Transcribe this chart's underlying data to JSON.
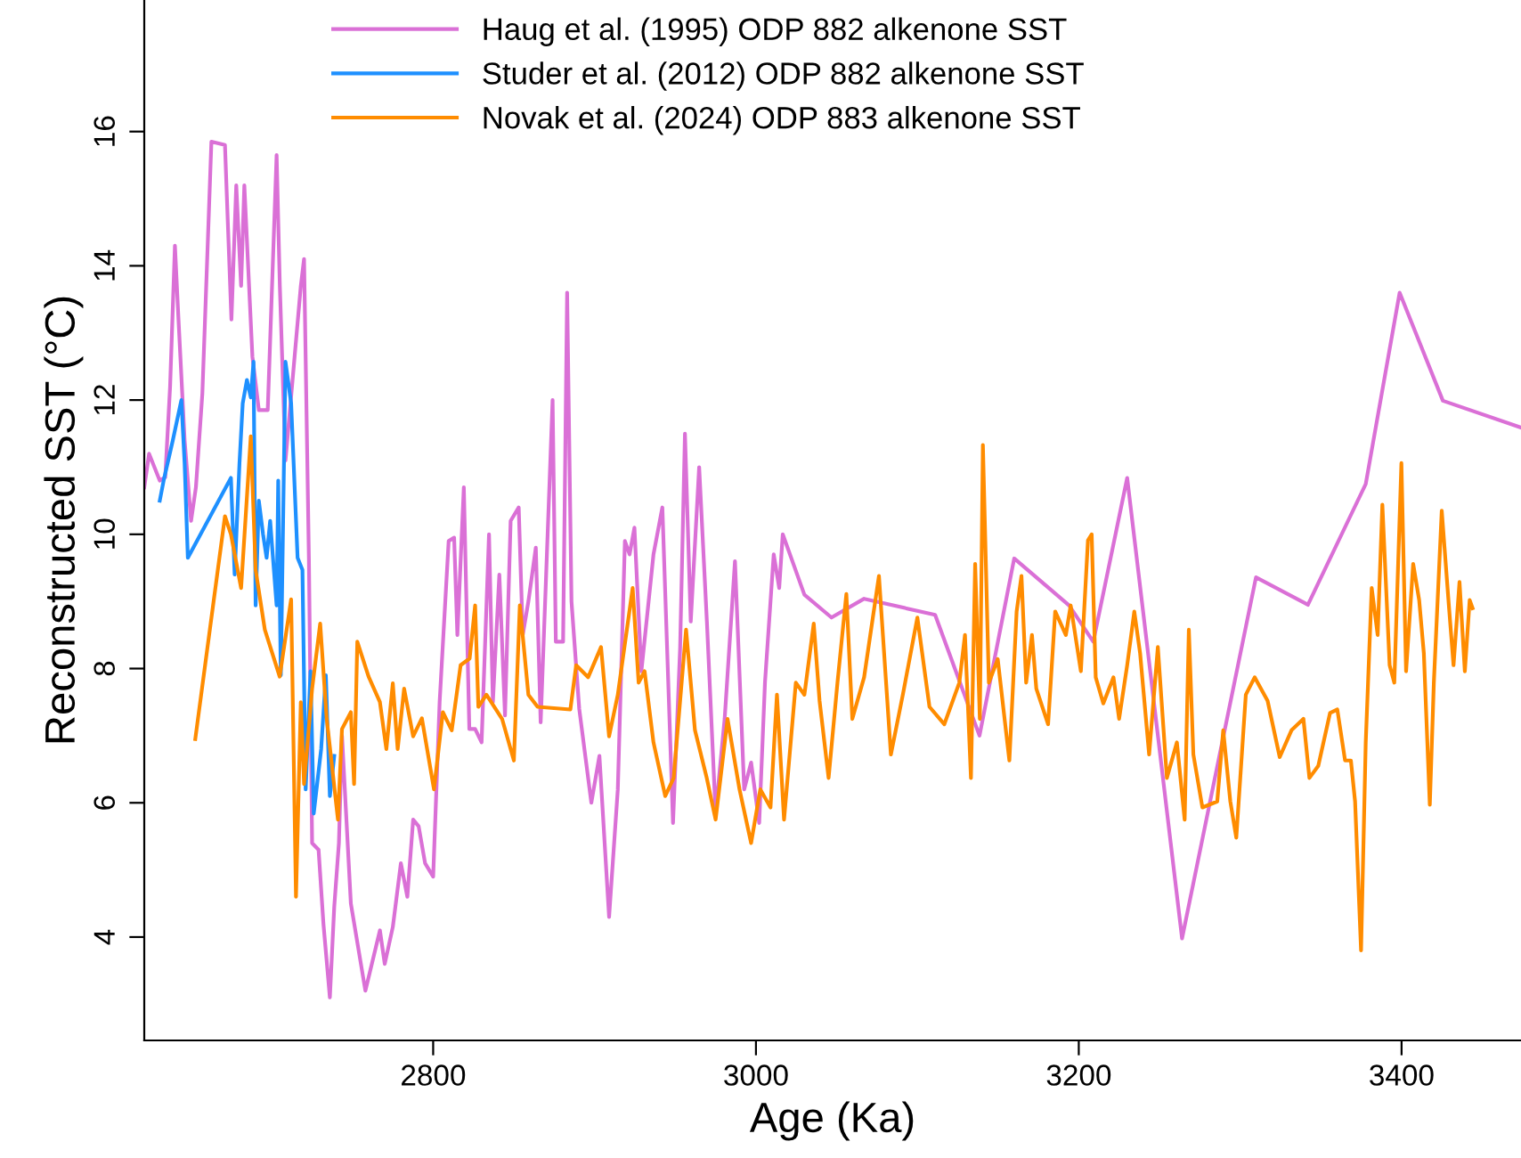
{
  "chart_data": {
    "type": "line",
    "xlabel": "Age (Ka)",
    "ylabel": "Reconstructed SST (°C)",
    "xlim": [
      2621,
      3474
    ],
    "ylim": [
      2.46,
      17.96
    ],
    "xticks": [
      2800,
      3000,
      3200,
      3400
    ],
    "yticks": [
      4,
      6,
      8,
      10,
      12,
      14,
      16
    ],
    "grid": false,
    "legend": "top",
    "marker": "none",
    "line_style": "solid",
    "series": [
      {
        "name": "Haug et al. (1995) ODP 882 alkenone SST",
        "color": "#da70d6",
        "x": [
          2621,
          2624,
          2630.6,
          2634,
          2637,
          2640,
          2642,
          2646,
          2650,
          2653,
          2657,
          2662.6,
          2671,
          2675,
          2678,
          2681,
          2683,
          2688,
          2692,
          2697.5,
          2703,
          2705,
          2708.5,
          2718,
          2720,
          2723,
          2725,
          2729,
          2732,
          2736,
          2738.7,
          2741.6,
          2743.5,
          2749,
          2758,
          2767,
          2770,
          2775,
          2780,
          2784,
          2787.6,
          2791,
          2795,
          2800,
          2804,
          2809.6,
          2813,
          2815,
          2819,
          2822.4,
          2826,
          2830,
          2834.6,
          2837,
          2841,
          2844.5,
          2848,
          2853,
          2855.5,
          2859,
          2863.6,
          2866.6,
          2870,
          2874,
          2876,
          2880.5,
          2883,
          2885.7,
          2890.5,
          2898,
          2903,
          2909,
          2914.4,
          2918.8,
          2921.7,
          2924.7,
          2929,
          2936.5,
          2942,
          2948.6,
          2953,
          2956,
          2959.6,
          2964.8,
          2969.6,
          2975,
          2980.6,
          2987,
          2992.7,
          2997,
          3002,
          3005.6,
          3011,
          3014.4,
          3016.6,
          3030,
          3046.8,
          3067,
          3111,
          3138.5,
          3160,
          3194,
          3209,
          3230,
          3264,
          3309.8,
          3342,
          3377.8,
          3398.8,
          3425.6,
          3474
        ],
        "values": [
          10.7,
          11.2,
          10.8,
          10.85,
          12.2,
          14.3,
          13.3,
          11.4,
          10.2,
          10.7,
          12.1,
          15.85,
          15.8,
          13.2,
          15.2,
          13.7,
          15.2,
          12.65,
          11.85,
          11.85,
          15.65,
          13.7,
          11.1,
          13.7,
          14.1,
          9.65,
          5.4,
          5.3,
          4.2,
          3.1,
          4.45,
          5.4,
          7.0,
          4.5,
          3.2,
          4.1,
          3.6,
          4.15,
          5.1,
          4.6,
          5.75,
          5.65,
          5.1,
          4.9,
          7.5,
          9.9,
          9.95,
          8.5,
          10.7,
          7.1,
          7.1,
          6.9,
          10.0,
          7.5,
          9.4,
          7.3,
          10.2,
          10.4,
          8.5,
          9.0,
          9.8,
          7.2,
          9.4,
          12.0,
          8.4,
          8.4,
          13.6,
          9.0,
          7.4,
          6.0,
          6.7,
          4.3,
          6.2,
          9.9,
          9.7,
          10.1,
          7.96,
          9.7,
          10.4,
          5.7,
          8.3,
          11.5,
          8.7,
          11.0,
          8.7,
          5.84,
          7.25,
          9.6,
          6.2,
          6.6,
          5.7,
          7.8,
          9.7,
          9.2,
          10.0,
          9.1,
          8.76,
          9.04,
          8.8,
          7.0,
          9.64,
          8.94,
          8.4,
          10.84,
          3.98,
          9.36,
          8.95,
          10.75,
          13.6,
          11.99,
          11.59
        ]
      },
      {
        "name": "Studer et al. (2012) ODP 882 alkenone SST",
        "color": "#1e90ff",
        "x": [
          2630.6,
          2633,
          2638.7,
          2644,
          2646,
          2648,
          2674.7,
          2677,
          2680,
          2682,
          2684.6,
          2687,
          2688.7,
          2690,
          2692,
          2694.6,
          2696.8,
          2699,
          2703,
          2704,
          2705.6,
          2708.5,
          2712,
          2716,
          2719,
          2721,
          2724,
          2726,
          2730.6,
          2733.5,
          2736,
          2738.7
        ],
        "values": [
          10.5,
          10.8,
          11.4,
          12.0,
          11.06,
          9.65,
          10.84,
          9.4,
          11.06,
          11.95,
          12.3,
          12.04,
          12.57,
          8.94,
          10.5,
          10.0,
          9.65,
          10.2,
          8.94,
          10.8,
          7.9,
          12.57,
          11.95,
          9.65,
          9.47,
          6.2,
          7.96,
          5.84,
          6.8,
          7.9,
          6.1,
          6.7
        ]
      },
      {
        "name": "Novak et al. (2024) ODP 883 alkenone SST",
        "color": "#ff8c00",
        "x": [
          2652.6,
          2671,
          2674.7,
          2681,
          2687,
          2690,
          2695.7,
          2704.9,
          2712,
          2715,
          2718,
          2720,
          2725,
          2730,
          2734,
          2741,
          2743.5,
          2749,
          2751,
          2753,
          2760,
          2767,
          2771,
          2775,
          2778,
          2782,
          2787.6,
          2793,
          2800.5,
          2806,
          2811.5,
          2817,
          2822.6,
          2826,
          2828,
          2833,
          2842.7,
          2850,
          2853.7,
          2859,
          2864.7,
          2885,
          2888.6,
          2896,
          2904,
          2909,
          2914.4,
          2923.6,
          2927.3,
          2931,
          2936.5,
          2943.8,
          2949,
          2956.7,
          2962.2,
          2969.5,
          2975,
          2982.4,
          2989.8,
          2997,
          3002.7,
          3009,
          3013,
          3017.4,
          3024.7,
          3030,
          3035.8,
          3039.4,
          3045,
          3050.5,
          3056,
          3059.7,
          3067,
          3076.2,
          3083.6,
          3091,
          3100,
          3107.5,
          3116.7,
          3126,
          3129.5,
          3133.2,
          3135.8,
          3138.7,
          3140.6,
          3144.3,
          3149.8,
          3157,
          3161.5,
          3164.5,
          3167.4,
          3171,
          3173.7,
          3181,
          3185.4,
          3192,
          3195,
          3201.3,
          3205.7,
          3208,
          3210.5,
          3215.2,
          3221.5,
          3225,
          3230,
          3234.4,
          3238,
          3243.6,
          3249,
          3254.6,
          3260.8,
          3265.6,
          3268.2,
          3271,
          3276.6,
          3285.8,
          3289.5,
          3293.9,
          3297.6,
          3303.5,
          3309,
          3317,
          3324.5,
          3331.8,
          3339.2,
          3342.9,
          3348.4,
          3355.7,
          3360.2,
          3365,
          3368.6,
          3371.2,
          3374.9,
          3377.8,
          3381.5,
          3385.2,
          3388.1,
          3392.6,
          3395.5,
          3399.9,
          3402.8,
          3407.2,
          3410.9,
          3413.8,
          3417.5,
          3420,
          3424.9,
          3429.3,
          3432.2,
          3435.9,
          3439.2,
          3442.2,
          3444
        ],
        "values": [
          6.95,
          10.27,
          10.0,
          9.2,
          11.46,
          9.47,
          8.58,
          7.88,
          9.03,
          4.6,
          7.5,
          6.28,
          7.7,
          8.67,
          7.26,
          5.75,
          7.1,
          7.35,
          6.28,
          8.4,
          7.88,
          7.5,
          6.8,
          7.78,
          6.8,
          7.7,
          6.99,
          7.26,
          6.2,
          7.35,
          7.08,
          8.05,
          8.15,
          8.94,
          7.43,
          7.61,
          7.25,
          6.63,
          8.94,
          7.61,
          7.43,
          7.39,
          8.05,
          7.87,
          8.32,
          6.99,
          7.61,
          9.2,
          7.79,
          7.96,
          6.9,
          6.1,
          6.37,
          8.58,
          7.08,
          6.37,
          5.75,
          7.25,
          6.2,
          5.4,
          6.2,
          5.93,
          7.61,
          5.75,
          7.79,
          7.61,
          8.67,
          7.52,
          6.37,
          7.79,
          9.11,
          7.25,
          7.87,
          9.38,
          6.72,
          7.61,
          8.76,
          7.43,
          7.17,
          7.79,
          8.5,
          6.37,
          9.56,
          7.25,
          11.33,
          7.79,
          8.14,
          6.63,
          8.85,
          9.38,
          7.79,
          8.5,
          7.7,
          7.17,
          8.85,
          8.5,
          8.94,
          7.96,
          9.91,
          10.0,
          7.87,
          7.48,
          7.87,
          7.25,
          8.05,
          8.85,
          8.23,
          6.72,
          8.32,
          6.37,
          6.9,
          5.75,
          8.58,
          6.72,
          5.93,
          6.02,
          7.08,
          6.02,
          5.48,
          7.61,
          7.87,
          7.52,
          6.68,
          7.08,
          7.25,
          6.37,
          6.55,
          7.34,
          7.39,
          6.63,
          6.63,
          6.02,
          3.8,
          6.9,
          9.2,
          8.5,
          10.44,
          8.05,
          7.79,
          11.06,
          7.96,
          9.56,
          9.02,
          8.23,
          5.97,
          7.79,
          10.35,
          8.94,
          8.05,
          9.29,
          7.96,
          9.02,
          8.9
        ]
      }
    ]
  }
}
